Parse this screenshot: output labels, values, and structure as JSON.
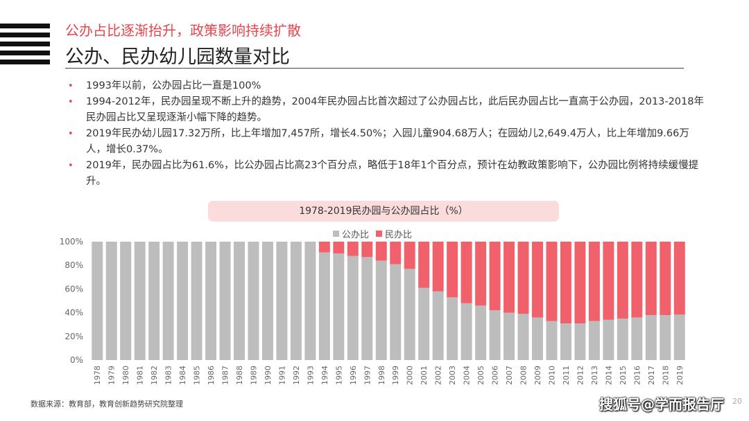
{
  "header": {
    "subtitle": "公办占比逐渐抬升，政策影响持续扩散",
    "title": "公办、民办幼儿园数量对比"
  },
  "bullets": [
    "1993年以前，公办园占比一直是100%",
    "1994-2012年，民办园呈现不断上升的趋势，2004年民办园占比首次超过了公办园占比，此后民办园占比一直高于公办园，2013-2018年民办园占比又呈现逐渐小幅下降的趋势。",
    "2019年民办幼儿园17.32万所，比上年增加7,457所，增长4.50%；入园儿童904.68万人；在园幼儿2,649.4万人，比上年增加9.66万人，增长0.37%。",
    "2019年，民办园占比为61.6%，比公办园占比高23个百分点，略低于18年1个百分点，预计在幼教政策影响下，公办园比例将持续缓慢提升。"
  ],
  "bullet_marker": "•",
  "chart_data": {
    "type": "bar",
    "stacked": true,
    "title": "1978-2019民办园与公办园占比（%）",
    "categories": [
      "1978",
      "1979",
      "1980",
      "1981",
      "1982",
      "1983",
      "1984",
      "1985",
      "1986",
      "1987",
      "1988",
      "1989",
      "1990",
      "1991",
      "1992",
      "1993",
      "1994",
      "1995",
      "1996",
      "1997",
      "1998",
      "1999",
      "2000",
      "2001",
      "2002",
      "2003",
      "2004",
      "2005",
      "2006",
      "2007",
      "2008",
      "2009",
      "2010",
      "2011",
      "2012",
      "2013",
      "2014",
      "2015",
      "2016",
      "2017",
      "2018",
      "2019"
    ],
    "series": [
      {
        "name": "公办比",
        "color": "#bdbdbd",
        "values": [
          100,
          100,
          100,
          100,
          100,
          100,
          100,
          100,
          100,
          100,
          100,
          100,
          100,
          100,
          100,
          100,
          91,
          90,
          88,
          87,
          84,
          81,
          77,
          61,
          58,
          53,
          48,
          46,
          42,
          40,
          39,
          36,
          33,
          31,
          31,
          33,
          34,
          35,
          36,
          38,
          38,
          38.4
        ]
      },
      {
        "name": "民办比",
        "color": "#f0616b",
        "values": [
          0,
          0,
          0,
          0,
          0,
          0,
          0,
          0,
          0,
          0,
          0,
          0,
          0,
          0,
          0,
          0,
          9,
          10,
          12,
          13,
          16,
          19,
          23,
          39,
          42,
          47,
          52,
          54,
          58,
          60,
          61,
          64,
          67,
          69,
          69,
          67,
          66,
          65,
          64,
          62,
          62,
          61.6
        ]
      }
    ],
    "yticks": [
      "0%",
      "20%",
      "40%",
      "60%",
      "80%",
      "100%"
    ],
    "ylim": [
      0,
      100
    ],
    "legend_position": "top-center"
  },
  "footer": {
    "source": "数据来源：教育部，教育创新趋势研究院整理",
    "watermark": "搜狐号@学而报告厅",
    "page": "20"
  }
}
